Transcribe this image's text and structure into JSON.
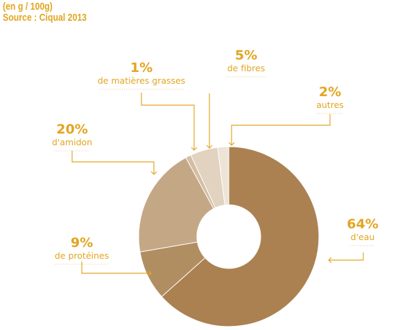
{
  "header": {
    "line1": "(en g / 100g)",
    "line2": "Source : Ciqual 2013"
  },
  "colors": {
    "accent": "#e2a521",
    "eau": "#ab8152",
    "proteines": "#b18e62",
    "amidon": "#c4a785",
    "matieres_grasses": "#d3bea3",
    "fibres": "#e2d2c0",
    "autres": "#eee4d6"
  },
  "chart_data": {
    "type": "pie",
    "donut": true,
    "slices": [
      {
        "key": "eau",
        "value": 64,
        "pct_label": "64%",
        "label": "d'eau"
      },
      {
        "key": "proteines",
        "value": 9,
        "pct_label": "9%",
        "label": "de protéines"
      },
      {
        "key": "amidon",
        "value": 20,
        "pct_label": "20%",
        "label": "d'amidon"
      },
      {
        "key": "matieres_grasses",
        "value": 1,
        "pct_label": "1%",
        "label": "de matières grasses"
      },
      {
        "key": "fibres",
        "value": 5,
        "pct_label": "5%",
        "label": "de fibres"
      },
      {
        "key": "autres",
        "value": 2,
        "pct_label": "2%",
        "label": "autres"
      }
    ]
  }
}
